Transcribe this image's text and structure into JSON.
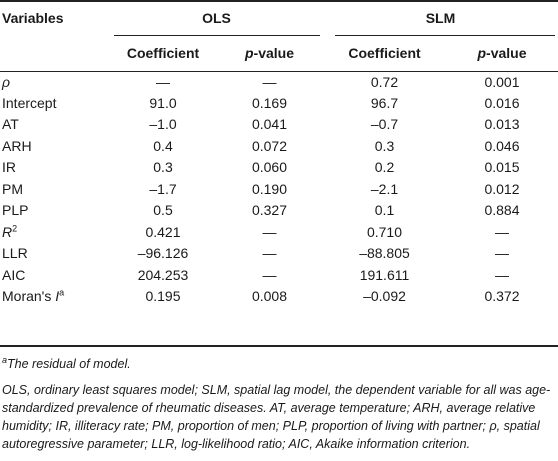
{
  "header": {
    "variables": "Variables",
    "group_ols": "OLS",
    "group_slm": "SLM",
    "coefficient": "Coefficient",
    "p_value_letter": "p",
    "p_value_rest": "-value"
  },
  "rows": [
    {
      "var": "ρ",
      "ols_coef": "—",
      "ols_p": "—",
      "slm_coef": "0.72",
      "slm_p": "0.001"
    },
    {
      "var": "Intercept",
      "ols_coef": "91.0",
      "ols_p": "0.169",
      "slm_coef": "96.7",
      "slm_p": "0.016"
    },
    {
      "var": "AT",
      "ols_coef": "–1.0",
      "ols_p": "0.041",
      "slm_coef": "–0.7",
      "slm_p": "0.013"
    },
    {
      "var": "ARH",
      "ols_coef": "0.4",
      "ols_p": "0.072",
      "slm_coef": "0.3",
      "slm_p": "0.046"
    },
    {
      "var": "IR",
      "ols_coef": "0.3",
      "ols_p": "0.060",
      "slm_coef": "0.2",
      "slm_p": "0.015"
    },
    {
      "var": "PM",
      "ols_coef": "–1.7",
      "ols_p": "0.190",
      "slm_coef": "–2.1",
      "slm_p": "0.012"
    },
    {
      "var": "PLP",
      "ols_coef": "0.5",
      "ols_p": "0.327",
      "slm_coef": "0.1",
      "slm_p": "0.884"
    },
    {
      "var": "R",
      "var_sup": "2",
      "ols_coef": "0.421",
      "ols_p": "—",
      "slm_coef": "0.710",
      "slm_p": "—"
    },
    {
      "var": "LLR",
      "ols_coef": "–96.126",
      "ols_p": "—",
      "slm_coef": "–88.805",
      "slm_p": "—"
    },
    {
      "var": "AIC",
      "ols_coef": "204.253",
      "ols_p": "—",
      "slm_coef": "191.611",
      "slm_p": "—"
    },
    {
      "var": "Moran's ",
      "var_italic": "I",
      "var_sup": "a",
      "ols_coef": "0.195",
      "ols_p": "0.008",
      "slm_coef": "–0.092",
      "slm_p": "0.372"
    }
  ],
  "notes": {
    "footnote_marker": "a",
    "footnote_text": "The residual of model.",
    "abbreviations": "OLS, ordinary least squares model; SLM, spatial lag model, the dependent variable for all was age-standardized prevalence of rheumatic diseases. AT, average temperature; ARH, average relative humidity; IR, illiteracy rate; PM, proportion of men; PLP, proportion of living with partner; ρ, spatial autoregressive parameter; LLR, log-likelihood ratio; AIC, Akaike information criterion."
  }
}
